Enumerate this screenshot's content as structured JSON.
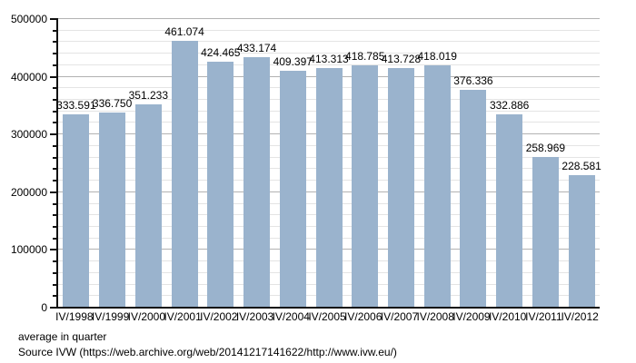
{
  "chart_data": {
    "type": "bar",
    "title": "",
    "xlabel": "",
    "ylabel": "",
    "categories": [
      "IV/1998",
      "IV/1999",
      "IV/2000",
      "IV/2001",
      "IV/2002",
      "IV/2003",
      "IV/2004",
      "IV/2005",
      "IV/2006",
      "IV/2007",
      "IV/2008",
      "IV/2009",
      "IV/2010",
      "IV/2011",
      "IV/2012"
    ],
    "values": [
      333591,
      336750,
      351233,
      461074,
      424465,
      433174,
      409397,
      413313,
      418785,
      413728,
      418019,
      376336,
      332886,
      258969,
      228581
    ],
    "value_labels": [
      "333.591",
      "336.750",
      "351.233",
      "461.074",
      "424.465",
      "433.174",
      "409.397",
      "413.313",
      "418.785",
      "413.728",
      "418.019",
      "376.336",
      "332.886",
      "258.969",
      "228.581"
    ],
    "ylim": [
      0,
      500000
    ],
    "y_major_step": 100000,
    "y_minor_step": 20000,
    "y_tick_labels": [
      "0",
      "100000",
      "200000",
      "300000",
      "400000",
      "500000"
    ],
    "grid": "on",
    "legend_position": "none",
    "bar_color": "#9ab3cd",
    "grid_major_color": "#b2b2b2",
    "grid_minor_color": "#e4e4e4",
    "axis_color": "#111111"
  },
  "footer": {
    "line1": "average in quarter",
    "line2": "Source IVW (https://web.archive.org/web/20141217141622/http://www.ivw.eu/)"
  }
}
